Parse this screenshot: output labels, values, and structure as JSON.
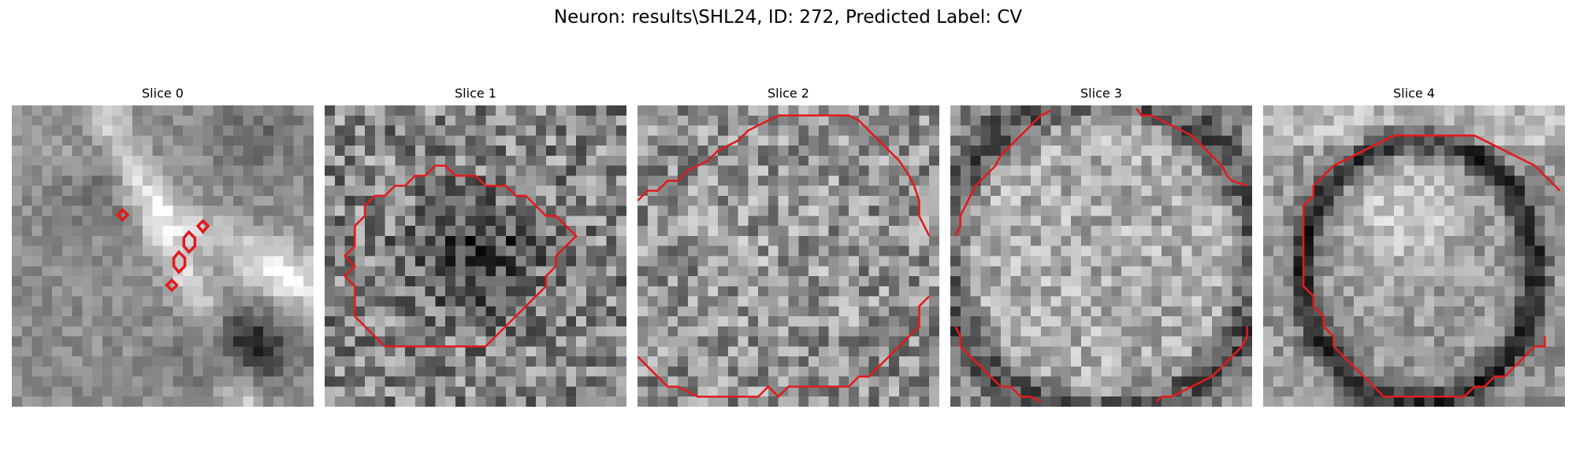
{
  "figure": {
    "title": "Neuron: results\\SHL24, ID: 272, Predicted Label: CV"
  },
  "panels": [
    {
      "title": "Slice 0",
      "contour_color": "#e31a1c",
      "colormap": "grayscale"
    },
    {
      "title": "Slice 1",
      "contour_color": "#e31a1c",
      "colormap": "grayscale"
    },
    {
      "title": "Slice 2",
      "contour_color": "#e31a1c",
      "colormap": "grayscale"
    },
    {
      "title": "Slice 3",
      "contour_color": "#e31a1c",
      "colormap": "grayscale"
    },
    {
      "title": "Slice 4",
      "contour_color": "#e31a1c",
      "colormap": "grayscale"
    }
  ]
}
